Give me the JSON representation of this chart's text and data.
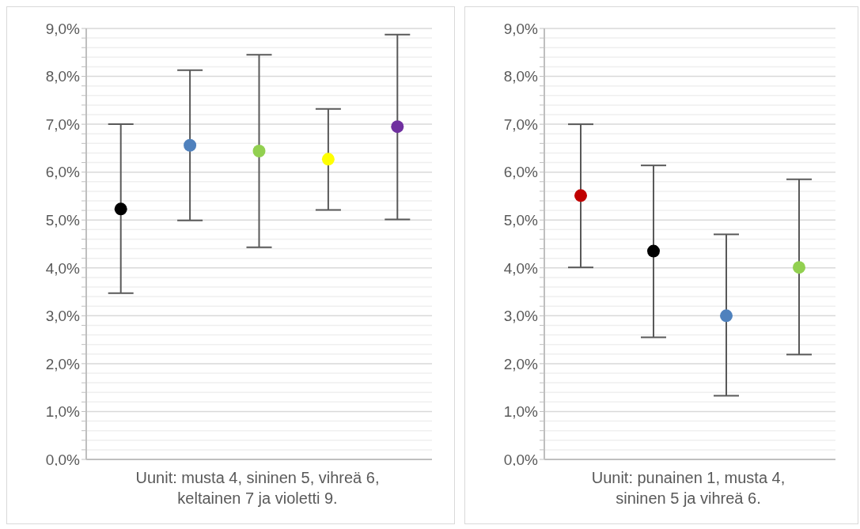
{
  "chart_data": [
    {
      "type": "scatter",
      "xlabel": "Uunit: musta 4, sininen 5, vihreä 6,\nkeltainen 7 ja violetti 9.",
      "categories": [
        null,
        null,
        null,
        null,
        null
      ],
      "values": [
        5.23,
        6.56,
        6.44,
        6.27,
        6.95
      ],
      "errors": [
        [
          3.47,
          7.0
        ],
        [
          4.99,
          8.13
        ],
        [
          4.43,
          8.45
        ],
        [
          5.21,
          7.32
        ],
        [
          5.01,
          8.87
        ]
      ],
      "colors": [
        "#000000",
        "#4f81bd",
        "#92d050",
        "#ffff00",
        "#7030a0"
      ],
      "ylim": [
        0,
        9
      ],
      "yticks": [
        {
          "value": 0,
          "label": "0,0%"
        },
        {
          "value": 0.2,
          "label": null
        },
        {
          "value": 0.4,
          "label": null
        },
        {
          "value": 0.6,
          "label": null
        },
        {
          "value": 0.8,
          "label": null
        },
        {
          "value": 1,
          "label": "1,0%"
        },
        {
          "value": 1.2,
          "label": null
        },
        {
          "value": 1.4,
          "label": null
        },
        {
          "value": 1.6,
          "label": null
        },
        {
          "value": 1.8,
          "label": null
        },
        {
          "value": 2,
          "label": "2,0%"
        },
        {
          "value": 2.2,
          "label": null
        },
        {
          "value": 2.4,
          "label": null
        },
        {
          "value": 2.6,
          "label": null
        },
        {
          "value": 2.8,
          "label": null
        },
        {
          "value": 3,
          "label": "3,0%"
        },
        {
          "value": 3.2,
          "label": null
        },
        {
          "value": 3.4,
          "label": null
        },
        {
          "value": 3.6,
          "label": null
        },
        {
          "value": 3.8,
          "label": null
        },
        {
          "value": 4,
          "label": "4,0%"
        },
        {
          "value": 4.2,
          "label": null
        },
        {
          "value": 4.4,
          "label": null
        },
        {
          "value": 4.6,
          "label": null
        },
        {
          "value": 4.8,
          "label": null
        },
        {
          "value": 5,
          "label": "5,0%"
        },
        {
          "value": 5.2,
          "label": null
        },
        {
          "value": 5.4,
          "label": null
        },
        {
          "value": 5.6,
          "label": null
        },
        {
          "value": 5.8,
          "label": null
        },
        {
          "value": 6,
          "label": "6,0%"
        },
        {
          "value": 6.2,
          "label": null
        },
        {
          "value": 6.4,
          "label": null
        },
        {
          "value": 6.6,
          "label": null
        },
        {
          "value": 6.8,
          "label": null
        },
        {
          "value": 7,
          "label": "7,0%"
        },
        {
          "value": 7.2,
          "label": null
        },
        {
          "value": 7.4,
          "label": null
        },
        {
          "value": 7.6,
          "label": null
        },
        {
          "value": 7.8,
          "label": null
        },
        {
          "value": 8,
          "label": "8,0%"
        },
        {
          "value": 8.2,
          "label": null
        },
        {
          "value": 8.4,
          "label": null
        },
        {
          "value": 8.6,
          "label": null
        },
        {
          "value": 8.8,
          "label": null
        },
        {
          "value": 9,
          "label": "9,0%"
        }
      ],
      "grid": "y",
      "marker": "circle"
    },
    {
      "type": "scatter",
      "xlabel": "Uunit: punainen 1, musta 4,\nsininen 5 ja vihreä 6.",
      "categories": [
        null,
        null,
        null,
        null
      ],
      "values": [
        5.51,
        4.35,
        3.0,
        4.01
      ],
      "errors": [
        [
          4.01,
          7.0
        ],
        [
          2.55,
          6.14
        ],
        [
          1.33,
          4.7
        ],
        [
          2.19,
          5.85
        ]
      ],
      "colors": [
        "#c00000",
        "#000000",
        "#4f81bd",
        "#92d050"
      ],
      "ylim": [
        0,
        9
      ],
      "yticks": [
        {
          "value": 0,
          "label": "0,0%"
        },
        {
          "value": 0.2,
          "label": null
        },
        {
          "value": 0.4,
          "label": null
        },
        {
          "value": 0.6,
          "label": null
        },
        {
          "value": 0.8,
          "label": null
        },
        {
          "value": 1,
          "label": "1,0%"
        },
        {
          "value": 1.2,
          "label": null
        },
        {
          "value": 1.4,
          "label": null
        },
        {
          "value": 1.6,
          "label": null
        },
        {
          "value": 1.8,
          "label": null
        },
        {
          "value": 2,
          "label": "2,0%"
        },
        {
          "value": 2.2,
          "label": null
        },
        {
          "value": 2.4,
          "label": null
        },
        {
          "value": 2.6,
          "label": null
        },
        {
          "value": 2.8,
          "label": null
        },
        {
          "value": 3,
          "label": "3,0%"
        },
        {
          "value": 3.2,
          "label": null
        },
        {
          "value": 3.4,
          "label": null
        },
        {
          "value": 3.6,
          "label": null
        },
        {
          "value": 3.8,
          "label": null
        },
        {
          "value": 4,
          "label": "4,0%"
        },
        {
          "value": 4.2,
          "label": null
        },
        {
          "value": 4.4,
          "label": null
        },
        {
          "value": 4.6,
          "label": null
        },
        {
          "value": 4.8,
          "label": null
        },
        {
          "value": 5,
          "label": "5,0%"
        },
        {
          "value": 5.2,
          "label": null
        },
        {
          "value": 5.4,
          "label": null
        },
        {
          "value": 5.6,
          "label": null
        },
        {
          "value": 5.8,
          "label": null
        },
        {
          "value": 6,
          "label": "6,0%"
        },
        {
          "value": 6.2,
          "label": null
        },
        {
          "value": 6.4,
          "label": null
        },
        {
          "value": 6.6,
          "label": null
        },
        {
          "value": 6.8,
          "label": null
        },
        {
          "value": 7,
          "label": "7,0%"
        },
        {
          "value": 7.2,
          "label": null
        },
        {
          "value": 7.4,
          "label": null
        },
        {
          "value": 7.6,
          "label": null
        },
        {
          "value": 7.8,
          "label": null
        },
        {
          "value": 8,
          "label": "8,0%"
        },
        {
          "value": 8.2,
          "label": null
        },
        {
          "value": 8.4,
          "label": null
        },
        {
          "value": 8.6,
          "label": null
        },
        {
          "value": 8.8,
          "label": null
        },
        {
          "value": 9,
          "label": "9,0%"
        }
      ],
      "grid": "y",
      "marker": "circle"
    }
  ]
}
